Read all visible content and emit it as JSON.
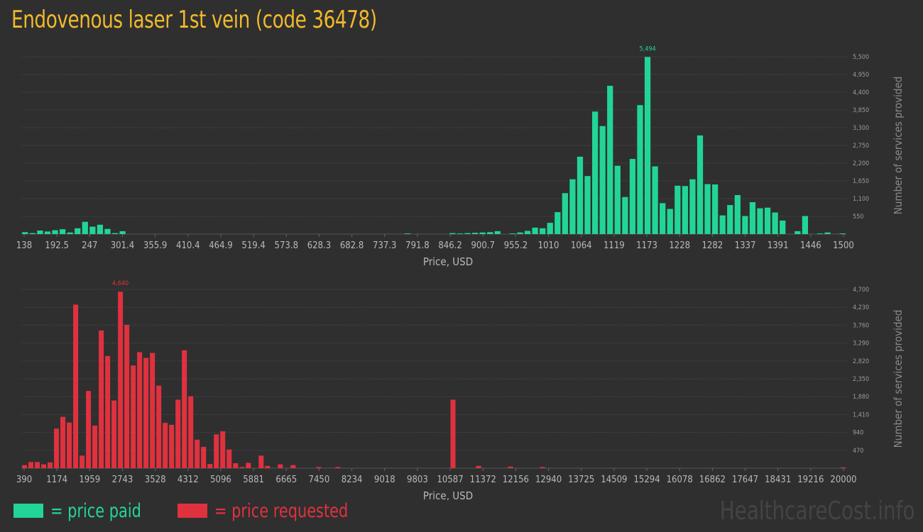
{
  "title": "Endovenous laser 1st vein (code 36478)",
  "legend": {
    "paid_label": "= price paid",
    "requested_label": "= price requested"
  },
  "watermark": "HealthcareCost.info",
  "colors": {
    "paid": "#22d596",
    "requested": "#e0313f",
    "title": "#f0b92c"
  },
  "chart_data": [
    {
      "id": "paid",
      "type": "bar",
      "xlabel": "Price, USD",
      "ylabel": "Number of services provided",
      "color": "#22d596",
      "ylim": [
        0,
        5500
      ],
      "yticks": [
        550,
        1100,
        1650,
        2200,
        2750,
        3300,
        3850,
        4400,
        4950,
        5500
      ],
      "ytick_labels": [
        "550",
        "1,100",
        "1,650",
        "2,200",
        "2,750",
        "3,300",
        "3,850",
        "4,400",
        "4,950",
        "5,500"
      ],
      "xtick_labels": [
        "138",
        "192.5",
        "247",
        "301.4",
        "355.9",
        "410.4",
        "464.9",
        "519.4",
        "573.8",
        "628.3",
        "682.8",
        "737.3",
        "791.8",
        "846.2",
        "900.7",
        "955.2",
        "1010",
        "1064",
        "1119",
        "1173",
        "1228",
        "1282",
        "1337",
        "1391",
        "1446",
        "1500"
      ],
      "peak_label": "5,494",
      "peak_index": 83,
      "values": [
        60,
        30,
        110,
        80,
        120,
        150,
        50,
        180,
        380,
        230,
        290,
        160,
        30,
        90,
        0,
        0,
        0,
        0,
        0,
        0,
        0,
        0,
        0,
        0,
        0,
        0,
        0,
        0,
        0,
        0,
        0,
        0,
        0,
        0,
        0,
        0,
        0,
        0,
        0,
        0,
        0,
        0,
        0,
        0,
        0,
        0,
        0,
        0,
        0,
        0,
        0,
        20,
        0,
        0,
        0,
        0,
        0,
        30,
        20,
        30,
        40,
        50,
        60,
        90,
        0,
        20,
        50,
        100,
        200,
        180,
        350,
        680,
        1270,
        1700,
        2400,
        1800,
        3800,
        3350,
        4600,
        2120,
        1150,
        2330,
        4000,
        5494,
        2100,
        960,
        780,
        1500,
        1490,
        1700,
        3060,
        1550,
        1540,
        580,
        900,
        1210,
        560,
        990,
        800,
        820,
        670,
        420,
        0,
        90,
        560,
        0,
        20,
        50,
        0,
        20
      ]
    },
    {
      "id": "requested",
      "type": "bar",
      "xlabel": "Price, USD",
      "ylabel": "Number of services provided",
      "color": "#e0313f",
      "ylim": [
        0,
        4700
      ],
      "yticks": [
        470,
        940,
        1410,
        1880,
        2350,
        2820,
        3290,
        3760,
        4230,
        4700
      ],
      "ytick_labels": [
        "470",
        "940",
        "1,410",
        "1,880",
        "2,350",
        "2,820",
        "3,290",
        "3,760",
        "4,230",
        "4,700"
      ],
      "xtick_labels": [
        "390",
        "1174",
        "1959",
        "2743",
        "3528",
        "4312",
        "5096",
        "5881",
        "6665",
        "7450",
        "8234",
        "9018",
        "9803",
        "10587",
        "11372",
        "12156",
        "12940",
        "13725",
        "14509",
        "15294",
        "16078",
        "16862",
        "17647",
        "18431",
        "19216",
        "20000"
      ],
      "peak_label": "4,640",
      "peak_index": 15,
      "values": [
        80,
        160,
        160,
        100,
        150,
        1040,
        1350,
        1200,
        4300,
        330,
        2030,
        1120,
        3620,
        2950,
        1780,
        4640,
        3770,
        2700,
        3050,
        2900,
        3030,
        2170,
        1190,
        1140,
        1800,
        3100,
        1890,
        750,
        560,
        110,
        890,
        970,
        490,
        130,
        30,
        140,
        0,
        330,
        60,
        0,
        100,
        0,
        80,
        0,
        0,
        0,
        30,
        0,
        0,
        30,
        0,
        0,
        0,
        0,
        0,
        0,
        0,
        0,
        0,
        0,
        0,
        0,
        0,
        0,
        0,
        0,
        0,
        1800,
        0,
        0,
        0,
        60,
        0,
        0,
        0,
        0,
        40,
        0,
        0,
        0,
        0,
        30,
        0,
        0,
        0,
        0,
        0,
        0,
        0,
        0,
        0,
        0,
        0,
        0,
        0,
        0,
        0,
        0,
        0,
        0,
        0,
        0,
        0,
        0,
        0,
        0,
        0,
        0,
        0,
        0,
        0,
        0,
        0,
        0,
        0,
        0,
        0,
        0,
        0,
        0,
        0,
        0,
        0,
        0,
        0,
        0,
        0,
        0,
        20
      ]
    }
  ]
}
